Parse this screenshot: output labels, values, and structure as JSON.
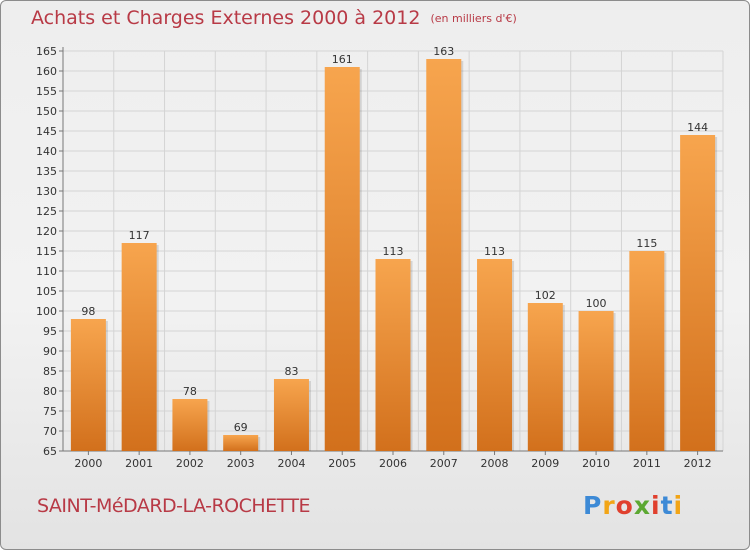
{
  "title": "Achats et Charges Externes 2000 à 2012",
  "unit": "(en milliers d'€)",
  "commune": "SAINT-MéDARD-LA-ROCHETTE",
  "logo": {
    "text": "Proxiti",
    "letters": [
      {
        "ch": "P",
        "color": "#3d8ad6"
      },
      {
        "ch": "r",
        "color": "#f2a516"
      },
      {
        "ch": "o",
        "color": "#e0402e"
      },
      {
        "ch": "x",
        "color": "#5ca832"
      },
      {
        "ch": "i",
        "color": "#e0402e"
      },
      {
        "ch": "t",
        "color": "#3d8ad6"
      },
      {
        "ch": "i",
        "color": "#f2a516"
      }
    ]
  },
  "colors": {
    "bar_top": "#f7a54e",
    "bar_bottom": "#d2701c",
    "title": "#b83a46"
  },
  "chart_data": {
    "type": "bar",
    "categories": [
      "2000",
      "2001",
      "2002",
      "2003",
      "2004",
      "2005",
      "2006",
      "2007",
      "2008",
      "2009",
      "2010",
      "2011",
      "2012"
    ],
    "values": [
      98,
      117,
      78,
      69,
      83,
      161,
      113,
      163,
      113,
      102,
      100,
      115,
      144
    ],
    "ylim": [
      65,
      165
    ],
    "yticks": [
      65,
      70,
      75,
      80,
      85,
      90,
      95,
      100,
      105,
      110,
      115,
      120,
      125,
      130,
      135,
      140,
      145,
      150,
      155,
      160,
      165
    ],
    "grid": true,
    "data_labels": true
  }
}
